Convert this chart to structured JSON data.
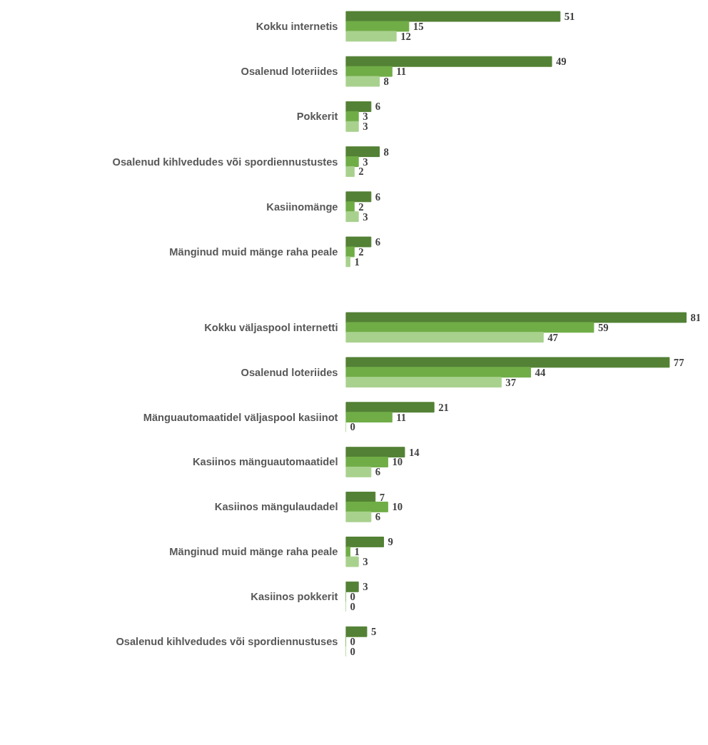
{
  "chart_data": [
    {
      "type": "bar",
      "orientation": "horizontal",
      "categories": [
        "Kokku internetis",
        "Osalenud loteriides",
        "Pokkerit",
        "Osalenud kihlvedudes või spordiennustustes",
        "Kasiinomänge",
        "Mänginud muid mänge raha peale"
      ],
      "tick_labels": "y",
      "data_labels": true,
      "series": [
        {
          "color": "#538135",
          "values": [
            51,
            49,
            6,
            8,
            6,
            6
          ]
        },
        {
          "color": "#70ad47",
          "values": [
            15,
            11,
            3,
            3,
            2,
            2
          ]
        },
        {
          "color": "#a9d18e",
          "values": [
            12,
            8,
            3,
            2,
            3,
            1
          ]
        }
      ]
    },
    {
      "type": "bar",
      "orientation": "horizontal",
      "categories": [
        "Kokku väljaspool internetti",
        "Osalenud loteriides",
        "Mänguautomaatidel väljaspool kasiinot",
        "Kasiinos mänguautomaatidel",
        "Kasiinos mängulaudadel",
        "Mänginud muid mänge raha peale",
        "Kasiinos pokkerit",
        "Osalenud kihlvedudes või spordiennustuses"
      ],
      "tick_labels": "y",
      "data_labels": true,
      "series": [
        {
          "color": "#538135",
          "values": [
            81,
            77,
            21,
            14,
            7,
            9,
            3,
            5
          ]
        },
        {
          "color": "#70ad47",
          "values": [
            59,
            44,
            11,
            10,
            10,
            1,
            0,
            0
          ]
        },
        {
          "color": "#a9d18e",
          "values": [
            47,
            37,
            0,
            6,
            6,
            3,
            0,
            0
          ]
        }
      ]
    }
  ]
}
